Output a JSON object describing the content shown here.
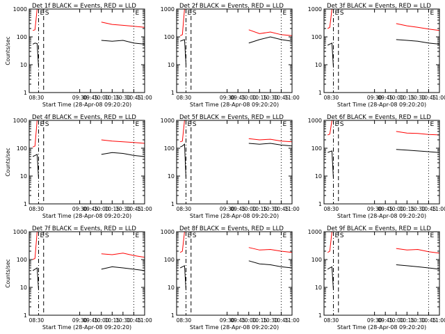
{
  "chart_data": [
    {
      "type": "line",
      "title": "Det 1f BLACK = Events, RED = LLD",
      "xlabel": "Start Time (28-Apr-08 09:20:20)",
      "ylabel": "Counts/sec",
      "yscale": "log",
      "ylim": [
        1,
        1000
      ],
      "yticks": [
        "1",
        "10",
        "100",
        "1000"
      ],
      "xlim": [
        "08:20",
        "11:00"
      ],
      "xticks": [
        "09:30",
        "09:45",
        "10:00",
        "10:15",
        "10:30",
        "10:45",
        "11:00"
      ],
      "markers": [
        "E",
        "S",
        "E"
      ],
      "series": [
        {
          "name": "BLACK = Events",
          "color": "#000000",
          "x": [
            "08:25",
            "08:28",
            "08:31",
            "08:33",
            "08:40",
            "09:45",
            "10:00",
            "10:15",
            "10:30",
            "10:45",
            "11:00"
          ],
          "values": [
            55,
            60,
            58,
            8,
            null,
            null,
            75,
            70,
            75,
            60,
            55
          ]
        },
        {
          "name": "RED = LLD",
          "color": "#ff0000",
          "x": [
            "08:25",
            "08:28",
            "08:31",
            "08:33",
            "08:40",
            "09:45",
            "10:00",
            "10:15",
            "10:30",
            "10:45",
            "11:00"
          ],
          "values": [
            170,
            180,
            1000,
            1000,
            null,
            null,
            340,
            280,
            260,
            240,
            220
          ]
        }
      ]
    },
    {
      "type": "line",
      "title": "Det 2f BLACK = Events, RED = LLD",
      "xlabel": "Start Time (28-Apr-08 09:20:20)",
      "ylabel": "",
      "yscale": "log",
      "ylim": [
        1,
        1000
      ],
      "yticks": [
        "1",
        "10",
        "100",
        "1000"
      ],
      "xlim": [
        "08:20",
        "11:00"
      ],
      "xticks": [
        "09:30",
        "09:45",
        "10:00",
        "10:15",
        "10:30",
        "10:45",
        "11:00"
      ],
      "markers": [
        "E",
        "S",
        "E"
      ],
      "series": [
        {
          "name": "BLACK = Events",
          "color": "#000000",
          "x": [
            "08:25",
            "08:28",
            "08:31",
            "08:33",
            "09:20",
            "10:00",
            "10:15",
            "10:30",
            "10:45",
            "11:00"
          ],
          "values": [
            70,
            75,
            80,
            10,
            null,
            60,
            80,
            100,
            80,
            70
          ]
        },
        {
          "name": "RED = LLD",
          "color": "#ff0000",
          "x": [
            "08:25",
            "08:28",
            "08:31",
            "08:33",
            "09:20",
            "10:00",
            "10:15",
            "10:30",
            "10:45",
            "11:00"
          ],
          "values": [
            110,
            120,
            1000,
            1000,
            null,
            180,
            130,
            150,
            120,
            110
          ]
        }
      ]
    },
    {
      "type": "line",
      "title": "Det 3f BLACK = Events, RED = LLD",
      "xlabel": "Start Time (28-Apr-08 09:20:20)",
      "ylabel": "",
      "yscale": "log",
      "ylim": [
        1,
        1000
      ],
      "yticks": [
        "1",
        "10",
        "100",
        "1000"
      ],
      "xlim": [
        "08:20",
        "11:00"
      ],
      "xticks": [
        "09:30",
        "09:45",
        "10:00",
        "10:15",
        "10:30",
        "10:45",
        "11:00"
      ],
      "markers": [
        "E",
        "S",
        "E"
      ],
      "series": [
        {
          "name": "BLACK = Events",
          "color": "#000000",
          "x": [
            "08:25",
            "08:28",
            "08:31",
            "08:33",
            "09:40",
            "10:00",
            "10:15",
            "10:30",
            "10:45",
            "11:00"
          ],
          "values": [
            50,
            55,
            60,
            8,
            null,
            80,
            75,
            70,
            60,
            55
          ]
        },
        {
          "name": "RED = LLD",
          "color": "#ff0000",
          "x": [
            "08:25",
            "08:28",
            "08:31",
            "08:33",
            "09:40",
            "10:00",
            "10:15",
            "10:30",
            "10:45",
            "11:00"
          ],
          "values": [
            200,
            220,
            1000,
            1000,
            null,
            300,
            250,
            220,
            190,
            170
          ]
        }
      ]
    },
    {
      "type": "line",
      "title": "Det 4f BLACK = Events, RED = LLD",
      "xlabel": "Start Time (28-Apr-08 09:20:20)",
      "ylabel": "Counts/sec",
      "yscale": "log",
      "ylim": [
        1,
        1000
      ],
      "yticks": [
        "1",
        "10",
        "100",
        "1000"
      ],
      "xlim": [
        "08:20",
        "11:00"
      ],
      "xticks": [
        "09:30",
        "09:45",
        "10:00",
        "10:15",
        "10:30",
        "10:45",
        "11:00"
      ],
      "markers": [
        "E",
        "S",
        "E"
      ],
      "series": [
        {
          "name": "BLACK = Events",
          "color": "#000000",
          "x": [
            "08:25",
            "08:28",
            "08:31",
            "08:33",
            "09:45",
            "10:00",
            "10:15",
            "10:30",
            "10:45",
            "11:00"
          ],
          "values": [
            50,
            55,
            60,
            8,
            null,
            60,
            70,
            65,
            55,
            50
          ]
        },
        {
          "name": "RED = LLD",
          "color": "#ff0000",
          "x": [
            "08:25",
            "08:28",
            "08:31",
            "08:33",
            "09:45",
            "10:00",
            "10:15",
            "10:30",
            "10:45",
            "11:00"
          ],
          "values": [
            110,
            120,
            1000,
            1000,
            null,
            200,
            180,
            170,
            160,
            150
          ]
        }
      ]
    },
    {
      "type": "line",
      "title": "Det 5f BLACK = Events, RED = LLD",
      "xlabel": "Start Time (28-Apr-08 09:20:20)",
      "ylabel": "",
      "yscale": "log",
      "ylim": [
        1,
        1000
      ],
      "yticks": [
        "1",
        "10",
        "100",
        "1000"
      ],
      "xlim": [
        "08:20",
        "11:00"
      ],
      "xticks": [
        "09:30",
        "09:45",
        "10:00",
        "10:15",
        "10:30",
        "10:45",
        "11:00"
      ],
      "markers": [
        "E",
        "S",
        "E"
      ],
      "series": [
        {
          "name": "BLACK = Events",
          "color": "#000000",
          "x": [
            "08:25",
            "08:28",
            "08:31",
            "08:33",
            "09:20",
            "10:00",
            "10:15",
            "10:30",
            "10:45",
            "11:00"
          ],
          "values": [
            110,
            120,
            140,
            8,
            null,
            150,
            140,
            150,
            130,
            120
          ]
        },
        {
          "name": "RED = LLD",
          "color": "#ff0000",
          "x": [
            "08:25",
            "08:28",
            "08:31",
            "08:33",
            "09:20",
            "10:00",
            "10:15",
            "10:30",
            "10:45",
            "11:00"
          ],
          "values": [
            170,
            180,
            1000,
            1000,
            null,
            220,
            200,
            210,
            180,
            170
          ]
        }
      ]
    },
    {
      "type": "line",
      "title": "Det 6f BLACK = Events, RED = LLD",
      "xlabel": "Start Time (28-Apr-08 09:20:20)",
      "ylabel": "",
      "yscale": "log",
      "ylim": [
        1,
        1000
      ],
      "yticks": [
        "1",
        "10",
        "100",
        "1000"
      ],
      "xlim": [
        "08:20",
        "11:00"
      ],
      "xticks": [
        "09:30",
        "09:45",
        "10:00",
        "10:15",
        "10:30",
        "10:45",
        "11:00"
      ],
      "markers": [
        "E",
        "S",
        "E"
      ],
      "series": [
        {
          "name": "BLACK = Events",
          "color": "#000000",
          "x": [
            "08:25",
            "08:28",
            "08:31",
            "08:33",
            "09:45",
            "10:00",
            "10:15",
            "10:30",
            "10:45",
            "11:00"
          ],
          "values": [
            70,
            75,
            80,
            8,
            null,
            90,
            85,
            80,
            75,
            70
          ]
        },
        {
          "name": "RED = LLD",
          "color": "#ff0000",
          "x": [
            "08:25",
            "08:28",
            "08:31",
            "08:33",
            "09:45",
            "10:00",
            "10:15",
            "10:30",
            "10:45",
            "11:00"
          ],
          "values": [
            300,
            320,
            1000,
            1000,
            null,
            400,
            350,
            340,
            310,
            300
          ]
        }
      ]
    },
    {
      "type": "line",
      "title": "Det 7f BLACK = Events, RED = LLD",
      "xlabel": "Start Time (28-Apr-08 09:20:20)",
      "ylabel": "Counts/sec",
      "yscale": "log",
      "ylim": [
        1,
        1000
      ],
      "yticks": [
        "1",
        "10",
        "100",
        "1000"
      ],
      "xlim": [
        "08:20",
        "11:00"
      ],
      "xticks": [
        "09:30",
        "09:45",
        "10:00",
        "10:15",
        "10:30",
        "10:45",
        "11:00"
      ],
      "markers": [
        "E",
        "S",
        "E"
      ],
      "series": [
        {
          "name": "BLACK = Events",
          "color": "#000000",
          "x": [
            "08:25",
            "08:28",
            "08:31",
            "08:33",
            "09:45",
            "10:00",
            "10:15",
            "10:30",
            "10:45",
            "11:00"
          ],
          "values": [
            40,
            45,
            50,
            8,
            null,
            45,
            55,
            50,
            45,
            40
          ]
        },
        {
          "name": "RED = LLD",
          "color": "#ff0000",
          "x": [
            "08:25",
            "08:28",
            "08:31",
            "08:33",
            "09:45",
            "10:00",
            "10:15",
            "10:30",
            "10:45",
            "11:00"
          ],
          "values": [
            100,
            110,
            1000,
            1000,
            null,
            160,
            150,
            170,
            140,
            120
          ]
        }
      ]
    },
    {
      "type": "line",
      "title": "Det 8f BLACK = Events, RED = LLD",
      "xlabel": "Start Time (28-Apr-08 09:20:20)",
      "ylabel": "",
      "yscale": "log",
      "ylim": [
        1,
        1000
      ],
      "yticks": [
        "1",
        "10",
        "100",
        "1000"
      ],
      "xlim": [
        "08:20",
        "11:00"
      ],
      "xticks": [
        "09:30",
        "09:45",
        "10:00",
        "10:15",
        "10:30",
        "10:45",
        "11:00"
      ],
      "markers": [
        "E",
        "S",
        "E"
      ],
      "series": [
        {
          "name": "BLACK = Events",
          "color": "#000000",
          "x": [
            "08:25",
            "08:28",
            "08:31",
            "08:33",
            "09:20",
            "10:00",
            "10:15",
            "10:30",
            "10:45",
            "11:00"
          ],
          "values": [
            50,
            55,
            60,
            8,
            null,
            90,
            70,
            65,
            55,
            50
          ]
        },
        {
          "name": "RED = LLD",
          "color": "#ff0000",
          "x": [
            "08:25",
            "08:28",
            "08:31",
            "08:33",
            "09:20",
            "10:00",
            "10:15",
            "10:30",
            "10:45",
            "11:00"
          ],
          "values": [
            180,
            200,
            1000,
            1000,
            null,
            270,
            220,
            230,
            200,
            180
          ]
        }
      ]
    },
    {
      "type": "line",
      "title": "Det 9f BLACK = Events, RED = LLD",
      "xlabel": "Start Time (28-Apr-08 09:20:20)",
      "ylabel": "",
      "yscale": "log",
      "ylim": [
        1,
        1000
      ],
      "yticks": [
        "1",
        "10",
        "100",
        "1000"
      ],
      "xlim": [
        "08:20",
        "11:00"
      ],
      "xticks": [
        "09:30",
        "09:45",
        "10:00",
        "10:15",
        "10:30",
        "10:45",
        "11:00"
      ],
      "markers": [
        "E",
        "S",
        "E"
      ],
      "series": [
        {
          "name": "BLACK = Events",
          "color": "#000000",
          "x": [
            "08:25",
            "08:28",
            "08:31",
            "08:33",
            "09:40",
            "10:00",
            "10:15",
            "10:30",
            "10:45",
            "11:00"
          ],
          "values": [
            45,
            50,
            55,
            8,
            null,
            65,
            60,
            55,
            50,
            45
          ]
        },
        {
          "name": "RED = LLD",
          "color": "#ff0000",
          "x": [
            "08:25",
            "08:28",
            "08:31",
            "08:33",
            "09:40",
            "10:00",
            "10:15",
            "10:30",
            "10:45",
            "11:00"
          ],
          "values": [
            180,
            200,
            1000,
            1000,
            null,
            250,
            220,
            230,
            190,
            170
          ]
        }
      ]
    }
  ]
}
